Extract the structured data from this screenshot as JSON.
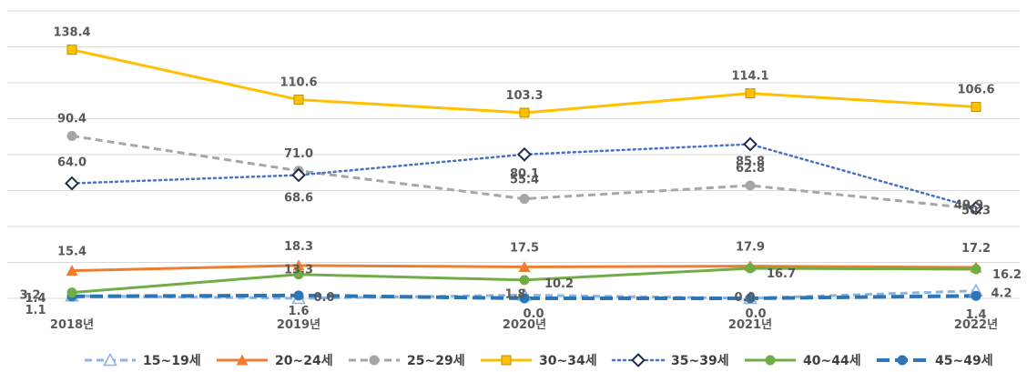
{
  "chart_data": {
    "type": "line",
    "categories": [
      "2018년",
      "2019년",
      "2020년",
      "2021년",
      "2022년"
    ],
    "ylim": [
      0,
      160
    ],
    "grid": true,
    "legend_position": "bottom",
    "series": [
      {
        "name": "15~19세",
        "values": [
          1.4,
          0.0,
          1.8,
          0.0,
          4.2
        ],
        "labels": [
          "1.4",
          "0.0",
          "1.8",
          "0.0",
          "4.2"
        ],
        "color": "#8db3e2",
        "dash": "dash",
        "marker": "triangle-open"
      },
      {
        "name": "20~24세",
        "values": [
          15.4,
          18.3,
          17.5,
          17.9,
          17.2
        ],
        "labels": [
          "15.4",
          "18.3",
          "17.5",
          "17.9",
          "17.2"
        ],
        "color": "#ed7d31",
        "dash": "solid",
        "marker": "triangle"
      },
      {
        "name": "25~29세",
        "values": [
          90.4,
          71.0,
          55.4,
          62.8,
          49.9
        ],
        "labels": [
          "90.4",
          "71.0",
          "55.4",
          "62.8",
          "49.9"
        ],
        "color": "#a6a6a6",
        "dash": "dash",
        "marker": "circle"
      },
      {
        "name": "30~34세",
        "values": [
          138.4,
          110.6,
          103.3,
          114.1,
          106.6
        ],
        "labels": [
          "138.4",
          "110.6",
          "103.3",
          "114.1",
          "106.6"
        ],
        "color": "#ffc000",
        "dash": "solid",
        "marker": "square"
      },
      {
        "name": "35~39세",
        "values": [
          64.0,
          68.6,
          80.1,
          85.8,
          50.3
        ],
        "labels": [
          "64.0",
          "68.6",
          "80.1",
          "85.8",
          "50.3"
        ],
        "color": "#4472c4",
        "dash": "dot",
        "marker": "diamond"
      },
      {
        "name": "40~44세",
        "values": [
          3.2,
          13.3,
          10.2,
          16.7,
          16.2
        ],
        "labels": [
          "3.2",
          "13.3",
          "10.2",
          "16.7",
          "16.2"
        ],
        "color": "#70ad47",
        "dash": "solid",
        "marker": "circle"
      },
      {
        "name": "45~49세",
        "values": [
          1.1,
          1.6,
          0.0,
          0.0,
          1.4
        ],
        "labels": [
          "1.1",
          "1.6",
          "0.0",
          "0.0",
          "1.4"
        ],
        "color": "#2e75b6",
        "dash": "longdash",
        "marker": "circle"
      }
    ]
  }
}
